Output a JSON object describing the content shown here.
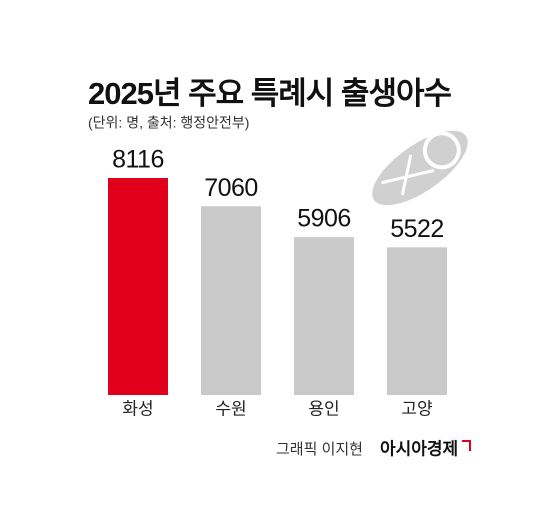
{
  "chart_data": {
    "type": "bar",
    "title": "2025년 주요 특례시 출생아수",
    "subtitle": "(단위: 명, 출처: 행정안전부)",
    "categories": [
      "화성",
      "수원",
      "용인",
      "고양"
    ],
    "values": [
      8116,
      7060,
      5906,
      5522
    ],
    "colors": [
      "#e1001b",
      "#c9c9c9",
      "#c9c9c9",
      "#c9c9c9"
    ],
    "ylim": [
      0,
      9000
    ],
    "grid": false,
    "credit": "그래픽 이지현",
    "publisher": "아시아경제"
  }
}
